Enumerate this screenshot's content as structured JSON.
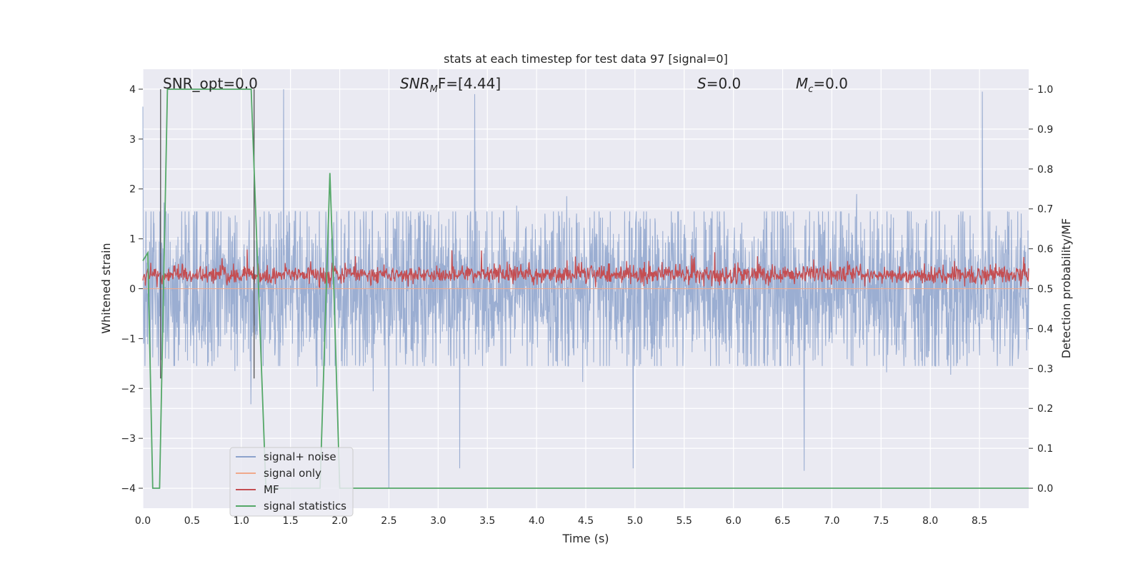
{
  "chart_data": {
    "type": "line",
    "title": "stats at each timestep for test data 97 [signal=0]",
    "xlabel": "Time (s)",
    "ylabel_left": "Whitened strain",
    "ylabel_right": "Detection probability/MF",
    "xlim": [
      0,
      9.0
    ],
    "ylim_left": [
      -4.4,
      4.4
    ],
    "ylim_right": [
      -0.05,
      1.05
    ],
    "x_ticks": [
      0.0,
      0.5,
      1.0,
      1.5,
      2.0,
      2.5,
      3.0,
      3.5,
      4.0,
      4.5,
      5.0,
      5.5,
      6.0,
      6.5,
      7.0,
      7.5,
      8.0,
      8.5
    ],
    "x_tick_labels": [
      "0.0",
      "0.5",
      "1.0",
      "1.5",
      "2.0",
      "2.5",
      "3.0",
      "3.5",
      "4.0",
      "4.5",
      "5.0",
      "5.5",
      "6.0",
      "6.5",
      "7.0",
      "7.5",
      "8.0",
      "8.5"
    ],
    "y_left_ticks": [
      -4,
      -3,
      -2,
      -1,
      0,
      1,
      2,
      3,
      4
    ],
    "y_left_tick_labels": [
      "−4",
      "−3",
      "−2",
      "−1",
      "0",
      "1",
      "2",
      "3",
      "4"
    ],
    "y_right_ticks": [
      0.0,
      0.1,
      0.2,
      0.3,
      0.4,
      0.5,
      0.6,
      0.7,
      0.8,
      0.9,
      1.0
    ],
    "y_right_tick_labels": [
      "0.0",
      "0.1",
      "0.2",
      "0.3",
      "0.4",
      "0.5",
      "0.6",
      "0.7",
      "0.8",
      "0.9",
      "1.0"
    ],
    "grid": true,
    "legend_position": "lower-left",
    "annotations": {
      "snr_opt": "SNR_opt=0.0",
      "snr_mf_main": "SNR",
      "snr_mf_sub": "M",
      "snr_mf_rest": "F=[4.44]",
      "s_main": "S",
      "s_rest": "=0.0",
      "mc_main": "M",
      "mc_sub": "c",
      "mc_rest": "=0.0"
    },
    "series": [
      {
        "name": "signal+ noise",
        "color": "#8da3cc",
        "axis": "left",
        "description_values": "noise, approx. ±1.6 envelope with spikes up to ±4",
        "notable_peaks": [
          [
            0.0,
            3.65
          ],
          [
            1.43,
            4.0
          ],
          [
            2.5,
            -4.0
          ],
          [
            3.22,
            -3.6
          ],
          [
            3.37,
            3.9
          ],
          [
            4.98,
            -3.6
          ],
          [
            6.72,
            -3.65
          ],
          [
            8.53,
            3.95
          ]
        ]
      },
      {
        "name": "signal only",
        "color": "#f0a98c",
        "axis": "left",
        "values_note": "zero everywhere"
      },
      {
        "name": "MF",
        "color": "#c44e52",
        "axis": "right",
        "baseline": 0.5,
        "range": [
          0.5,
          0.62
        ]
      },
      {
        "name": "signal statistics",
        "color": "#55a868",
        "axis": "right",
        "x": [
          0.0,
          0.05,
          0.1,
          0.12,
          0.17,
          0.25,
          1.1,
          1.25,
          1.33,
          1.8,
          1.9,
          1.94,
          2.0,
          2.06,
          9.0
        ],
        "y": [
          0.57,
          0.59,
          0.0,
          0.0,
          0.0,
          1.0,
          1.0,
          0.0,
          0.0,
          0.0,
          0.79,
          0.5,
          0.0,
          0.0,
          0.0
        ]
      }
    ],
    "vertical_markers_s": [
      0.18,
      1.13
    ]
  }
}
